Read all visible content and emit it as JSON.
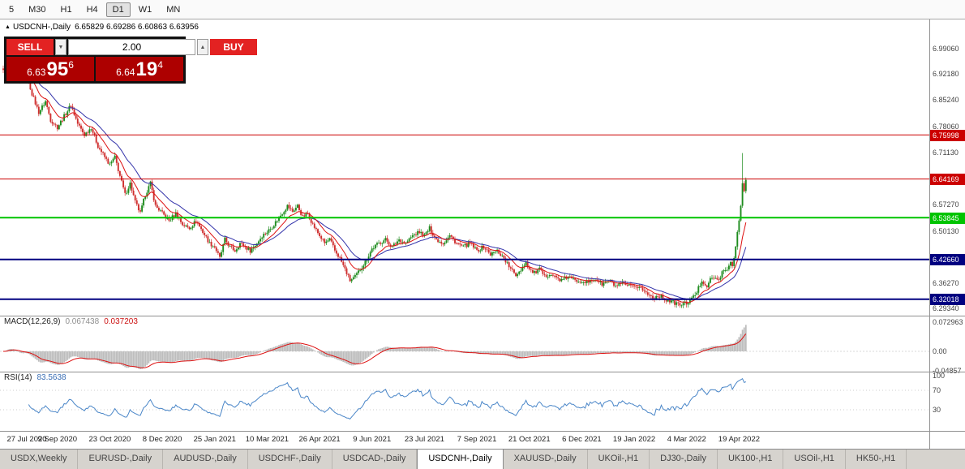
{
  "toolbar": {
    "timeframes": [
      {
        "label": "5",
        "active": false
      },
      {
        "label": "M30",
        "active": false
      },
      {
        "label": "H1",
        "active": false
      },
      {
        "label": "H4",
        "active": false
      },
      {
        "label": "D1",
        "active": true
      },
      {
        "label": "W1",
        "active": false
      },
      {
        "label": "MN",
        "active": false
      }
    ]
  },
  "chart_header": {
    "icon": "▲",
    "symbol": "USDCNH-,Daily",
    "ohlc_text": "6.65829 6.69286 6.60863 6.63956"
  },
  "trade_panel": {
    "sell_label": "SELL",
    "buy_label": "BUY",
    "volume": "2.00",
    "spinner_down_icon": "▼",
    "spinner_up_icon": "▲",
    "sell_price": {
      "prefix": "6.63",
      "big": "95",
      "sup": "6"
    },
    "buy_price": {
      "prefix": "6.64",
      "big": "19",
      "sup": "4"
    }
  },
  "price_axis": {
    "labels": [
      {
        "text": "6.99060",
        "value": 6.9906
      },
      {
        "text": "6.92180",
        "value": 6.9218
      },
      {
        "text": "6.85240",
        "value": 6.8524
      },
      {
        "text": "6.78060",
        "value": 6.7806
      },
      {
        "text": "6.71130",
        "value": 6.7113
      },
      {
        "text": "6.57270",
        "value": 6.5727
      },
      {
        "text": "6.50130",
        "value": 6.5013
      },
      {
        "text": "6.36270",
        "value": 6.3627
      },
      {
        "text": "6.29340",
        "value": 6.2934
      }
    ]
  },
  "levels": [
    {
      "text": "6.75998",
      "value": 6.75998,
      "color": "#cc0000",
      "width": 1
    },
    {
      "text": "6.64169",
      "value": 6.64169,
      "color": "#cc0000",
      "width": 1
    },
    {
      "text": "6.53845",
      "value": 6.53845,
      "color": "#00c400",
      "width": 2
    },
    {
      "text": "6.42660",
      "value": 6.4266,
      "color": "#000080",
      "width": 2
    },
    {
      "text": "6.32018",
      "value": 6.32018,
      "color": "#000080",
      "width": 2
    }
  ],
  "macd_panel": {
    "name": "MACD(12,26,9)",
    "value1": "0.067438",
    "value2": "0.037203",
    "axis": [
      {
        "text": "0.072963",
        "value": 0.072963
      },
      {
        "text": "0.00",
        "value": 0
      },
      {
        "text": "-0.04857",
        "value": -0.04857
      }
    ],
    "max": 0.072963,
    "min": -0.04857
  },
  "rsi_panel": {
    "name": "RSI(14)",
    "value": "83.5638",
    "axis": [
      {
        "text": "100",
        "value": 100
      },
      {
        "text": "70",
        "value": 70
      },
      {
        "text": "30",
        "value": 30
      }
    ],
    "guide_levels": [
      70,
      30
    ]
  },
  "date_axis": {
    "labels": [
      "27 Jul 2020",
      "9 Sep 2020",
      "23 Oct 2020",
      "8 Dec 2020",
      "25 Jan 2021",
      "10 Mar 2021",
      "26 Apr 2021",
      "9 Jun 2021",
      "23 Jul 2021",
      "7 Sep 2021",
      "21 Oct 2021",
      "6 Dec 2021",
      "19 Jan 2022",
      "4 Mar 2022",
      "19 Apr 2022"
    ]
  },
  "tabs": [
    {
      "label": "USDX,Weekly",
      "active": false
    },
    {
      "label": "EURUSD-,Daily",
      "active": false
    },
    {
      "label": "AUDUSD-,Daily",
      "active": false
    },
    {
      "label": "USDCHF-,Daily",
      "active": false
    },
    {
      "label": "USDCAD-,Daily",
      "active": false
    },
    {
      "label": "USDCNH-,Daily",
      "active": true
    },
    {
      "label": "XAUUSD-,Daily",
      "active": false
    },
    {
      "label": "UKOil-,H1",
      "active": false
    },
    {
      "label": "DJ30-,Daily",
      "active": false
    },
    {
      "label": "UK100-,H1",
      "active": false
    },
    {
      "label": "USOil-,H1",
      "active": false
    },
    {
      "label": "HK50-,H1",
      "active": false
    }
  ],
  "colors": {
    "candle_up": "#1e8c1e",
    "candle_down": "#cf2e2e",
    "ma_fast": "#dd1111",
    "ma_slow": "#3333aa",
    "macd_hist": "#bdbdbd",
    "macd_signal": "#dd1111",
    "rsi_line": "#4a86c8"
  },
  "chart_data": {
    "type": "candlestick",
    "symbol": "USDCNH",
    "timeframe": "Daily",
    "current_ohlc": {
      "open": 6.65829,
      "high": 6.69286,
      "low": 6.60863,
      "close": 6.63956
    },
    "price_levels": [
      6.75998,
      6.64169,
      6.53845,
      6.4266,
      6.32018
    ],
    "y_axis_range": [
      6.2934,
      6.9906
    ],
    "num_candles": 440,
    "close_anchors": [
      [
        0,
        6.93
      ],
      [
        3,
        6.97
      ],
      [
        6,
        6.94
      ],
      [
        9,
        6.9
      ],
      [
        13,
        6.93
      ],
      [
        17,
        6.87
      ],
      [
        21,
        6.82
      ],
      [
        25,
        6.85
      ],
      [
        28,
        6.8
      ],
      [
        32,
        6.78
      ],
      [
        36,
        6.81
      ],
      [
        40,
        6.84
      ],
      [
        44,
        6.79
      ],
      [
        48,
        6.76
      ],
      [
        52,
        6.78
      ],
      [
        56,
        6.73
      ],
      [
        60,
        6.7
      ],
      [
        63,
        6.68
      ],
      [
        66,
        6.7
      ],
      [
        69,
        6.65
      ],
      [
        72,
        6.6
      ],
      [
        75,
        6.63
      ],
      [
        78,
        6.58
      ],
      [
        81,
        6.55
      ],
      [
        84,
        6.6
      ],
      [
        87,
        6.63
      ],
      [
        90,
        6.57
      ],
      [
        94,
        6.55
      ],
      [
        98,
        6.53
      ],
      [
        102,
        6.55
      ],
      [
        106,
        6.52
      ],
      [
        110,
        6.51
      ],
      [
        114,
        6.53
      ],
      [
        118,
        6.5
      ],
      [
        122,
        6.47
      ],
      [
        125,
        6.46
      ],
      [
        128,
        6.43
      ],
      [
        131,
        6.48
      ],
      [
        134,
        6.46
      ],
      [
        137,
        6.45
      ],
      [
        140,
        6.47
      ],
      [
        143,
        6.46
      ],
      [
        146,
        6.45
      ],
      [
        150,
        6.47
      ],
      [
        153,
        6.49
      ],
      [
        156,
        6.5
      ],
      [
        160,
        6.52
      ],
      [
        164,
        6.545
      ],
      [
        168,
        6.57
      ],
      [
        171,
        6.555
      ],
      [
        174,
        6.57
      ],
      [
        177,
        6.54
      ],
      [
        180,
        6.55
      ],
      [
        183,
        6.52
      ],
      [
        187,
        6.49
      ],
      [
        190,
        6.47
      ],
      [
        193,
        6.48
      ],
      [
        196,
        6.45
      ],
      [
        199,
        6.43
      ],
      [
        202,
        6.4
      ],
      [
        205,
        6.37
      ],
      [
        208,
        6.38
      ],
      [
        211,
        6.4
      ],
      [
        214,
        6.42
      ],
      [
        218,
        6.455
      ],
      [
        222,
        6.47
      ],
      [
        226,
        6.48
      ],
      [
        230,
        6.46
      ],
      [
        234,
        6.48
      ],
      [
        238,
        6.47
      ],
      [
        242,
        6.49
      ],
      [
        246,
        6.5
      ],
      [
        249,
        6.49
      ],
      [
        252,
        6.51
      ],
      [
        256,
        6.48
      ],
      [
        260,
        6.47
      ],
      [
        264,
        6.49
      ],
      [
        268,
        6.47
      ],
      [
        272,
        6.46
      ],
      [
        276,
        6.47
      ],
      [
        280,
        6.45
      ],
      [
        284,
        6.46
      ],
      [
        288,
        6.44
      ],
      [
        292,
        6.45
      ],
      [
        296,
        6.43
      ],
      [
        300,
        6.4
      ],
      [
        303,
        6.385
      ],
      [
        306,
        6.4
      ],
      [
        309,
        6.42
      ],
      [
        311,
        6.4
      ],
      [
        314,
        6.39
      ],
      [
        317,
        6.4
      ],
      [
        320,
        6.38
      ],
      [
        323,
        6.39
      ],
      [
        326,
        6.38
      ],
      [
        330,
        6.37
      ],
      [
        334,
        6.38
      ],
      [
        338,
        6.37
      ],
      [
        342,
        6.37
      ],
      [
        346,
        6.365
      ],
      [
        350,
        6.375
      ],
      [
        354,
        6.36
      ],
      [
        358,
        6.37
      ],
      [
        362,
        6.355
      ],
      [
        366,
        6.36
      ],
      [
        370,
        6.355
      ],
      [
        373,
        6.35
      ],
      [
        376,
        6.355
      ],
      [
        379,
        6.34
      ],
      [
        382,
        6.33
      ],
      [
        385,
        6.325
      ],
      [
        388,
        6.33
      ],
      [
        391,
        6.32
      ],
      [
        394,
        6.315
      ],
      [
        397,
        6.31
      ],
      [
        400,
        6.305
      ],
      [
        404,
        6.31
      ],
      [
        407,
        6.32
      ],
      [
        410,
        6.34
      ],
      [
        413,
        6.37
      ],
      [
        416,
        6.355
      ],
      [
        419,
        6.38
      ],
      [
        422,
        6.37
      ],
      [
        425,
        6.39
      ],
      [
        428,
        6.4
      ],
      [
        430,
        6.42
      ],
      [
        431,
        6.41
      ],
      [
        432,
        6.43
      ],
      [
        433,
        6.46
      ],
      [
        434,
        6.5
      ],
      [
        435,
        6.53
      ],
      [
        436,
        6.57
      ],
      [
        437,
        6.63
      ],
      [
        438,
        6.61
      ],
      [
        439,
        6.6396
      ]
    ],
    "wick_overrides": [
      [
        437,
        6.7113,
        null
      ]
    ],
    "indicators": {
      "macd": {
        "fast": 12,
        "slow": 26,
        "signal": 9,
        "current_main": 0.067438,
        "current_signal": 0.037203,
        "panel_range": [
          -0.04857,
          0.072963
        ]
      },
      "rsi": {
        "period": 14,
        "current": 83.5638,
        "levels": [
          70,
          30
        ]
      }
    }
  }
}
